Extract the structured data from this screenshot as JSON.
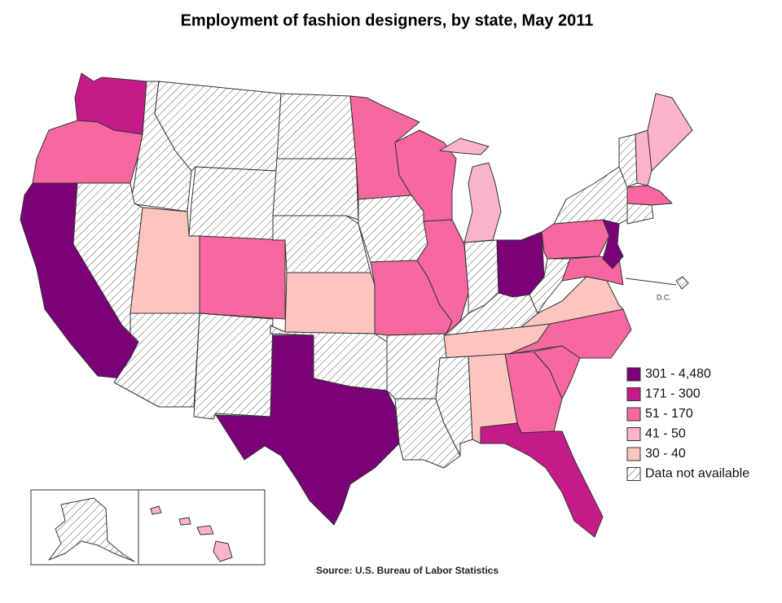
{
  "title": "Employment of fashion designers, by state, May 2011",
  "legend": [
    {
      "label": "301 - 4,480",
      "color": "#7a0177"
    },
    {
      "label": "171 - 300",
      "color": "#c51b8a"
    },
    {
      "label": "51 - 170",
      "color": "#f768a1"
    },
    {
      "label": "41 - 50",
      "color": "#fbb4c9"
    },
    {
      "label": "30 - 40",
      "color": "#fcc5c0"
    },
    {
      "label": "Data not available"
    }
  ],
  "dc_label": "D.C.",
  "source": "Source:  U.S. Bureau of Labor Statistics"
}
